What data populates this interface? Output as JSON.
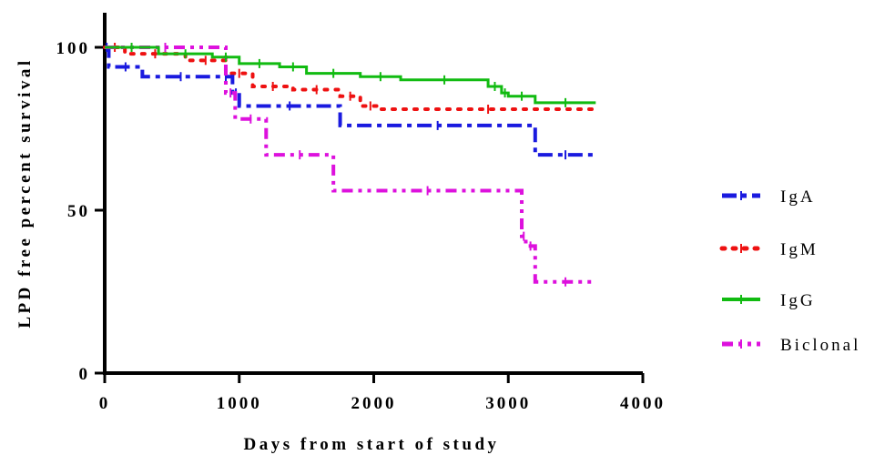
{
  "chart_data": {
    "type": "line",
    "subtype": "kaplan-meier step",
    "xlabel": "Days from start of study",
    "ylabel": "LPD free percent survival",
    "xlim": [
      0,
      4000
    ],
    "ylim": [
      0,
      100
    ],
    "xticks": [
      0,
      1000,
      2000,
      3000,
      4000
    ],
    "yticks": [
      0,
      50,
      100
    ],
    "xtick_labels": [
      "0",
      "1000",
      "2000",
      "3000",
      "4000"
    ],
    "ytick_labels": [
      "0",
      "50",
      "100"
    ],
    "grid": false,
    "legend_position": "right",
    "series": [
      {
        "name": "IgA",
        "color": "#1a1adf",
        "style": "dashdot",
        "x": [
          0,
          30,
          280,
          850,
          950,
          1000,
          1750,
          3200,
          3650
        ],
        "y": [
          100,
          94,
          91,
          91,
          86,
          82,
          76,
          67,
          67
        ]
      },
      {
        "name": "IgM",
        "color": "#ee1111",
        "style": "dotted",
        "x": [
          0,
          150,
          600,
          900,
          1100,
          1400,
          1750,
          1900,
          2050,
          3650
        ],
        "y": [
          100,
          98,
          96,
          92,
          88,
          87,
          85,
          82,
          81,
          81
        ]
      },
      {
        "name": "IgG",
        "color": "#11bb11",
        "style": "solid",
        "x": [
          0,
          400,
          800,
          1000,
          1300,
          1500,
          1900,
          2200,
          2850,
          2950,
          3000,
          3200,
          3650
        ],
        "y": [
          100,
          98,
          97,
          95,
          94,
          92,
          91,
          90,
          88,
          86,
          85,
          83,
          83
        ]
      },
      {
        "name": "Biclonal",
        "color": "#dd11dd",
        "style": "dashdotdot",
        "x": [
          0,
          900,
          970,
          1200,
          1700,
          3100,
          3130,
          3200,
          3650
        ],
        "y": [
          100,
          86,
          78,
          67,
          56,
          42,
          39,
          28,
          28
        ]
      }
    ]
  }
}
